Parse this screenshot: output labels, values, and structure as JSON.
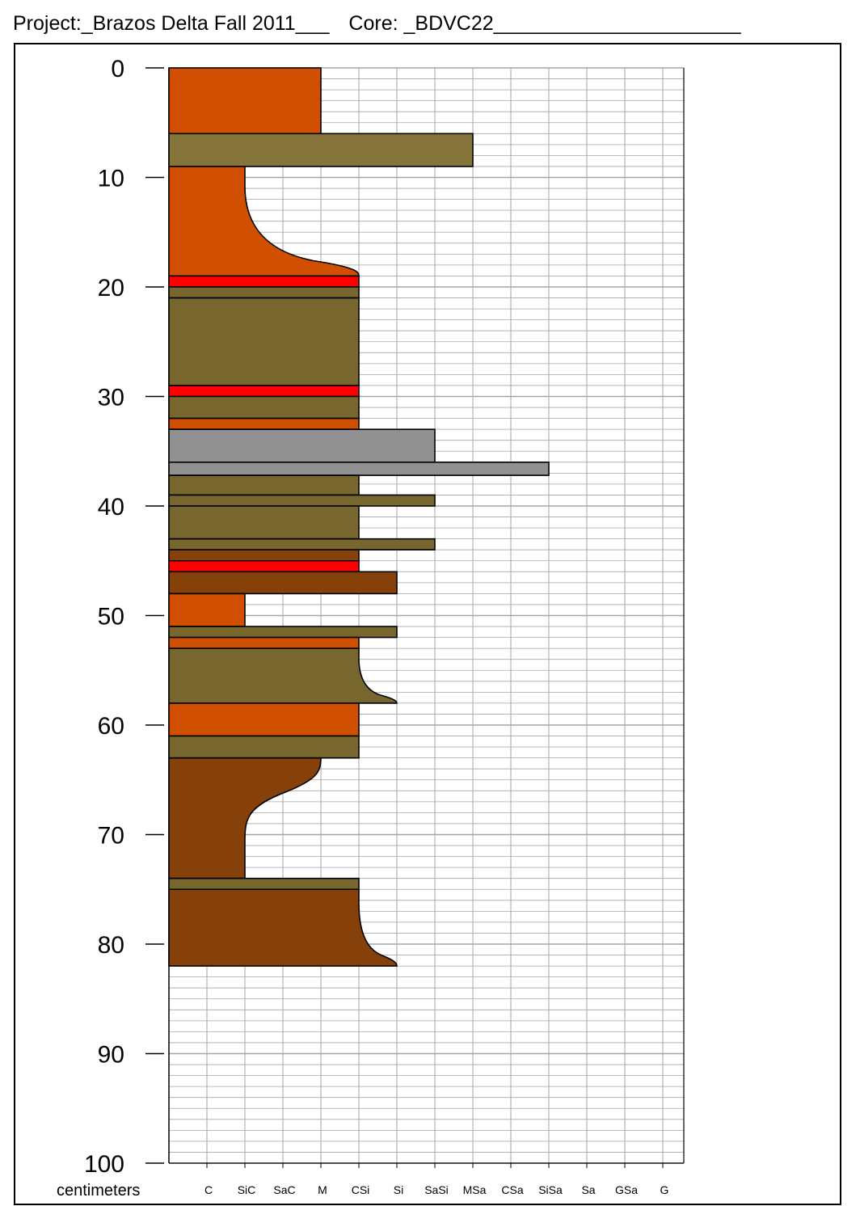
{
  "header": {
    "project_text": "Project:_Brazos Delta Fall 2011___",
    "core_text": "Core: _BDVC22______________________"
  },
  "chart_data": {
    "type": "core-log",
    "depth_unit_label": "centimeters",
    "depth_range": [
      0,
      100
    ],
    "depth_ticks": [
      0,
      10,
      20,
      30,
      40,
      50,
      60,
      70,
      80,
      90,
      100
    ],
    "grain_size_classes": [
      "C",
      "SiC",
      "SaC",
      "M",
      "CSi",
      "Si",
      "SaSi",
      "MSa",
      "CSa",
      "SiSa",
      "Sa",
      "GSa",
      "G"
    ],
    "horizontal_grid_step_cm": 1,
    "colors": {
      "orange": "#d14f00",
      "olive": "#77672f",
      "olive_light": "#86753a",
      "red": "#ff0000",
      "gray": "#919191",
      "brown": "#86400a",
      "grid": "#a6a6a6"
    },
    "layers": [
      {
        "top": 0,
        "bottom": 6,
        "grain": "M",
        "color": "orange"
      },
      {
        "top": 6,
        "bottom": 9,
        "grain": "MSa",
        "color": "olive_light"
      },
      {
        "top": 9,
        "bottom": 19,
        "grain": "SiC",
        "grain_end": "CSi",
        "transition": "coarsening-down",
        "color": "orange"
      },
      {
        "top": 19,
        "bottom": 20,
        "grain": "CSi",
        "color": "red"
      },
      {
        "top": 20,
        "bottom": 21,
        "grain": "CSi",
        "color": "olive"
      },
      {
        "top": 21,
        "bottom": 29,
        "grain": "CSi",
        "color": "olive"
      },
      {
        "top": 29,
        "bottom": 30,
        "grain": "CSi",
        "color": "red"
      },
      {
        "top": 30,
        "bottom": 32,
        "grain": "CSi",
        "color": "olive"
      },
      {
        "top": 32,
        "bottom": 33,
        "grain": "CSi",
        "color": "orange"
      },
      {
        "top": 33,
        "bottom": 36,
        "grain": "SaSi",
        "color": "gray"
      },
      {
        "top": 36,
        "bottom": 37.2,
        "grain": "SiSa",
        "color": "gray"
      },
      {
        "top": 37.2,
        "bottom": 39,
        "grain": "CSi",
        "color": "olive"
      },
      {
        "top": 39,
        "bottom": 40,
        "grain": "SaSi",
        "color": "olive"
      },
      {
        "top": 40,
        "bottom": 43,
        "grain": "CSi",
        "color": "olive"
      },
      {
        "top": 43,
        "bottom": 44,
        "grain": "SaSi",
        "color": "olive"
      },
      {
        "top": 44,
        "bottom": 45,
        "grain": "CSi",
        "color": "brown"
      },
      {
        "top": 45,
        "bottom": 46,
        "grain": "CSi",
        "color": "red"
      },
      {
        "top": 46,
        "bottom": 48,
        "grain": "Si",
        "color": "brown"
      },
      {
        "top": 48,
        "bottom": 51,
        "grain": "SiC",
        "color": "orange"
      },
      {
        "top": 51,
        "bottom": 52,
        "grain": "Si",
        "color": "olive"
      },
      {
        "top": 52,
        "bottom": 53,
        "grain": "CSi",
        "color": "orange"
      },
      {
        "top": 53,
        "bottom": 58,
        "grain": "CSi",
        "grain_end": "Si",
        "transition": "coarsening-down",
        "color": "olive"
      },
      {
        "top": 58,
        "bottom": 61,
        "grain": "CSi",
        "color": "orange"
      },
      {
        "top": 61,
        "bottom": 63,
        "grain": "CSi",
        "color": "olive"
      },
      {
        "top": 63,
        "bottom": 74,
        "grain": "M",
        "grain_end": "SiC",
        "transition": "fining-down",
        "color": "brown"
      },
      {
        "top": 74,
        "bottom": 75,
        "grain": "CSi",
        "color": "olive"
      },
      {
        "top": 75,
        "bottom": 82,
        "grain": "CSi",
        "grain_end": "Si",
        "transition": "coarsening-down",
        "color": "brown"
      }
    ]
  }
}
